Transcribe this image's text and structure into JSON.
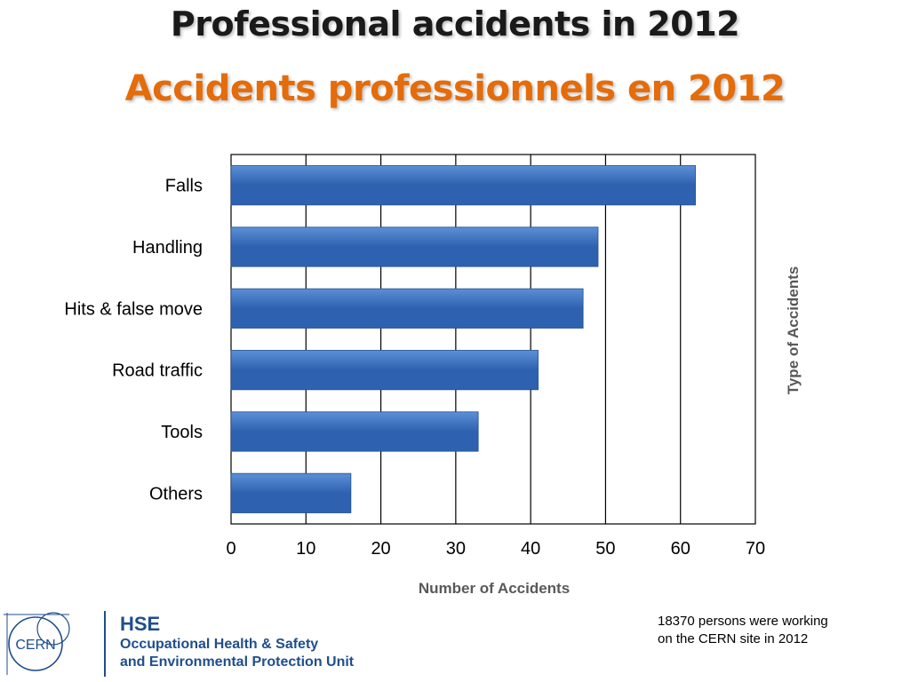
{
  "title": {
    "english": "Professional accidents in 2012",
    "french": "Accidents professionnels en 2012"
  },
  "chart_data": {
    "type": "bar",
    "orientation": "horizontal",
    "categories": [
      "Falls",
      "Handling",
      "Hits & false move",
      "Road traffic",
      "Tools",
      "Others"
    ],
    "values": [
      62,
      49,
      47,
      41,
      33,
      16
    ],
    "xlabel": "Number of Accidents",
    "ylabel": "Type of Accidents",
    "xlim": [
      0,
      70
    ],
    "xticks": [
      0,
      10,
      20,
      30,
      40,
      50,
      60,
      70
    ],
    "grid": true,
    "legend": "none",
    "bar_color": "#2e62b0",
    "bar_color_light": "#5b8fd6"
  },
  "footer": {
    "note_line1": "18370 persons were working",
    "note_line2": "on the CERN site in 2012",
    "logo_text": "CERN",
    "hse_title": "HSE",
    "hse_line1": "Occupational Health & Safety",
    "hse_line2": "and Environmental Protection Unit",
    "brand_color": "#1f4e8c"
  }
}
